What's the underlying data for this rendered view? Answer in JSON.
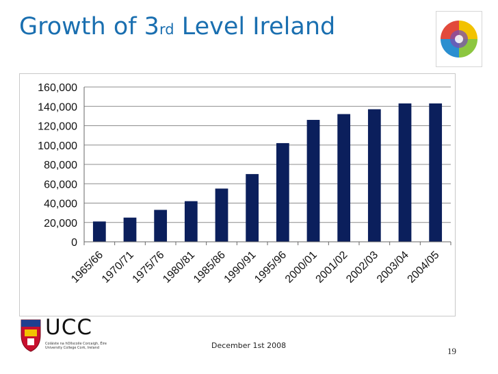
{
  "slide": {
    "title_main": "Growth of 3",
    "title_sup": "rd",
    "title_rest": " Level Ireland",
    "footer_date": "December 1st 2008",
    "page_number": "19"
  },
  "logos": {
    "ucc_name": "UCC",
    "ucc_sub_1": "Coláiste na hOllscoile Corcaigh, Éire",
    "ucc_sub_2": "University College Cork, Ireland"
  },
  "colors": {
    "title": "#1a6fb0",
    "bar": "#0b1f5c",
    "grid": "#8c8c8c"
  },
  "chart_data": {
    "type": "bar",
    "title": "",
    "xlabel": "",
    "ylabel": "",
    "ylim": [
      0,
      160000
    ],
    "yticks": [
      0,
      20000,
      40000,
      60000,
      80000,
      100000,
      120000,
      140000,
      160000
    ],
    "ytick_labels": [
      "0",
      "20,000",
      "40,000",
      "60,000",
      "80,000",
      "100,000",
      "120,000",
      "140,000",
      "160,000"
    ],
    "grid": true,
    "legend": "none",
    "categories": [
      "1965/66",
      "1970/71",
      "1975/76",
      "1980/81",
      "1985/86",
      "1990/91",
      "1995/96",
      "2000/01",
      "2001/02",
      "2002/03",
      "2003/04",
      "2004/05"
    ],
    "values": [
      21000,
      25000,
      33000,
      42000,
      55000,
      70000,
      102000,
      126000,
      132000,
      137000,
      143000,
      143000
    ]
  }
}
